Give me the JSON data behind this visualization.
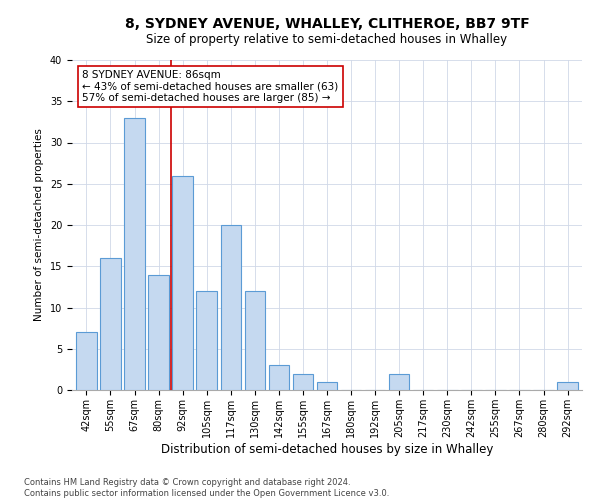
{
  "title": "8, SYDNEY AVENUE, WHALLEY, CLITHEROE, BB7 9TF",
  "subtitle": "Size of property relative to semi-detached houses in Whalley",
  "xlabel": "Distribution of semi-detached houses by size in Whalley",
  "ylabel": "Number of semi-detached properties",
  "categories": [
    "42sqm",
    "55sqm",
    "67sqm",
    "80sqm",
    "92sqm",
    "105sqm",
    "117sqm",
    "130sqm",
    "142sqm",
    "155sqm",
    "167sqm",
    "180sqm",
    "192sqm",
    "205sqm",
    "217sqm",
    "230sqm",
    "242sqm",
    "255sqm",
    "267sqm",
    "280sqm",
    "292sqm"
  ],
  "values": [
    7,
    16,
    33,
    14,
    26,
    12,
    20,
    12,
    3,
    2,
    1,
    0,
    0,
    2,
    0,
    0,
    0,
    0,
    0,
    0,
    1
  ],
  "bar_color": "#c5d9f0",
  "bar_edgecolor": "#5b9bd5",
  "bar_linewidth": 0.8,
  "grid_color": "#d0d8e8",
  "annotation_box_edgecolor": "#cc0000",
  "annotation_text": "8 SYDNEY AVENUE: 86sqm\n← 43% of semi-detached houses are smaller (63)\n57% of semi-detached houses are larger (85) →",
  "vline_color": "#cc0000",
  "vline_bin_index": 3,
  "ylim": [
    0,
    40
  ],
  "yticks": [
    0,
    5,
    10,
    15,
    20,
    25,
    30,
    35,
    40
  ],
  "footnote": "Contains HM Land Registry data © Crown copyright and database right 2024.\nContains public sector information licensed under the Open Government Licence v3.0.",
  "title_fontsize": 10,
  "subtitle_fontsize": 8.5,
  "ylabel_fontsize": 7.5,
  "xlabel_fontsize": 8.5,
  "tick_fontsize": 7,
  "annot_fontsize": 7.5,
  "footnote_fontsize": 6
}
